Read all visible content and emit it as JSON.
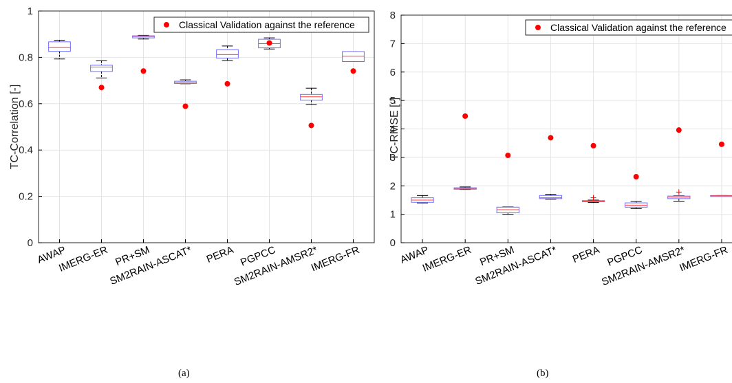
{
  "figure": {
    "captions": [
      "(a)",
      "(b)"
    ]
  },
  "chart_data": [
    {
      "type": "boxplot",
      "title": "",
      "xlabel": "",
      "ylabel": "TC-Correlation [-]",
      "ylim": [
        0,
        1
      ],
      "yticks": [
        "0",
        "0.2",
        "0.4",
        "0.6",
        "0.8",
        "1"
      ],
      "grid": true,
      "legend": {
        "position": "top-right",
        "entries": [
          "Classical Validation against the reference"
        ]
      },
      "categories": [
        "AWAP",
        "IMERG-ER",
        "PR+SM",
        "SM2RAIN-ASCAT*",
        "PERA",
        "PGPCC",
        "SM2RAIN-AMSR2*",
        "IMERG-FR"
      ],
      "boxes": [
        {
          "whisker_low": 0.793,
          "q1": 0.826,
          "median": 0.842,
          "q3": 0.867,
          "whisker_high": 0.874
        },
        {
          "whisker_low": 0.711,
          "q1": 0.739,
          "median": 0.758,
          "q3": 0.766,
          "whisker_high": 0.785
        },
        {
          "whisker_low": 0.879,
          "q1": 0.884,
          "median": 0.89,
          "q3": 0.893,
          "whisker_high": 0.895
        },
        {
          "whisker_low": 0.686,
          "q1": 0.687,
          "median": 0.692,
          "q3": 0.697,
          "whisker_high": 0.703
        },
        {
          "whisker_low": 0.786,
          "q1": 0.797,
          "median": 0.812,
          "q3": 0.833,
          "whisker_high": 0.849
        },
        {
          "whisker_low": 0.836,
          "q1": 0.841,
          "median": 0.859,
          "q3": 0.878,
          "whisker_high": 0.884
        },
        {
          "whisker_low": 0.597,
          "q1": 0.615,
          "median": 0.63,
          "q3": 0.64,
          "whisker_high": 0.667
        },
        {
          "whisker_low": 0.782,
          "q1": 0.782,
          "median": 0.805,
          "q3": 0.825,
          "whisker_high": 0.825
        }
      ],
      "outliers": [],
      "classical_validation": [
        0.0,
        0.67,
        0.741,
        0.589,
        0.686,
        0.862,
        0.506,
        0.741
      ],
      "classical_validation_shown": [
        false,
        true,
        true,
        true,
        true,
        true,
        true,
        true
      ]
    },
    {
      "type": "boxplot",
      "title": "",
      "xlabel": "",
      "ylabel": "TC-RMSE [-]",
      "ylim": [
        0,
        8
      ],
      "yticks": [
        "0",
        "1",
        "2",
        "3",
        "4",
        "5",
        "6",
        "7",
        "8"
      ],
      "grid": true,
      "legend": {
        "position": "top-right",
        "entries": [
          "Classical Validation against the reference"
        ]
      },
      "categories": [
        "AWAP",
        "IMERG-ER",
        "PR+SM",
        "SM2RAIN-ASCAT*",
        "PERA",
        "PGPCC",
        "SM2RAIN-AMSR2*",
        "IMERG-FR"
      ],
      "boxes": [
        {
          "whisker_low": 1.4,
          "q1": 1.42,
          "median": 1.5,
          "q3": 1.58,
          "whisker_high": 1.66
        },
        {
          "whisker_low": 1.87,
          "q1": 1.88,
          "median": 1.91,
          "q3": 1.93,
          "whisker_high": 1.96
        },
        {
          "whisker_low": 1.0,
          "q1": 1.05,
          "median": 1.16,
          "q3": 1.25,
          "whisker_high": 1.26
        },
        {
          "whisker_low": 1.53,
          "q1": 1.55,
          "median": 1.58,
          "q3": 1.66,
          "whisker_high": 1.7
        },
        {
          "whisker_low": 1.41,
          "q1": 1.44,
          "median": 1.46,
          "q3": 1.48,
          "whisker_high": 1.5
        },
        {
          "whisker_low": 1.2,
          "q1": 1.25,
          "median": 1.32,
          "q3": 1.4,
          "whisker_high": 1.45
        },
        {
          "whisker_low": 1.45,
          "q1": 1.55,
          "median": 1.6,
          "q3": 1.64,
          "whisker_high": 1.65
        },
        {
          "whisker_low": 1.63,
          "q1": 1.64,
          "median": 1.65,
          "q3": 1.66,
          "whisker_high": 1.66
        }
      ],
      "outliers": [
        {
          "category_index": 4,
          "value": 1.58
        },
        {
          "category_index": 6,
          "value": 1.78
        }
      ],
      "classical_validation": [
        0.0,
        4.45,
        3.07,
        3.69,
        3.41,
        2.32,
        3.96,
        3.46
      ],
      "classical_validation_shown": [
        false,
        true,
        true,
        true,
        true,
        true,
        true,
        true
      ]
    }
  ],
  "colors": {
    "box": "#6d6dff",
    "median": "#ff4040",
    "whisker": "#000000",
    "point": "#ff0000",
    "outlier": "#ff0000",
    "grid": "#e4e4e4",
    "axis": "#000000"
  }
}
